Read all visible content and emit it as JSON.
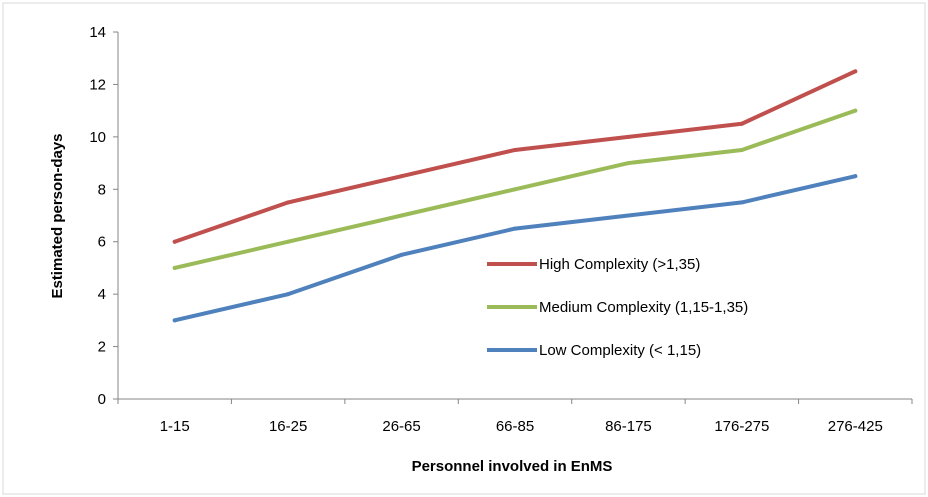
{
  "chart_data": {
    "type": "line",
    "xlabel": "Personnel involved in EnMS",
    "ylabel": "Estimated person-days",
    "categories": [
      "1-15",
      "16-25",
      "26-65",
      "66-85",
      "86-175",
      "176-275",
      "276-425"
    ],
    "ylim": [
      0,
      14
    ],
    "yticks": [
      0,
      2,
      4,
      6,
      8,
      10,
      12,
      14
    ],
    "grid": false,
    "legend_position": "inside-right",
    "series": [
      {
        "name": "High Complexity (>1,35)",
        "color": "#c0504d",
        "values": [
          6,
          7.5,
          8.5,
          9.5,
          10,
          10.5,
          12.5
        ]
      },
      {
        "name": "Medium Complexity (1,15-1,35)",
        "color": "#9bbb59",
        "values": [
          5,
          6,
          7,
          8,
          9,
          9.5,
          11
        ]
      },
      {
        "name": "Low Complexity (< 1,15)",
        "color": "#4f81bd",
        "values": [
          3,
          4,
          5.5,
          6.5,
          7,
          7.5,
          8.5
        ]
      }
    ]
  }
}
